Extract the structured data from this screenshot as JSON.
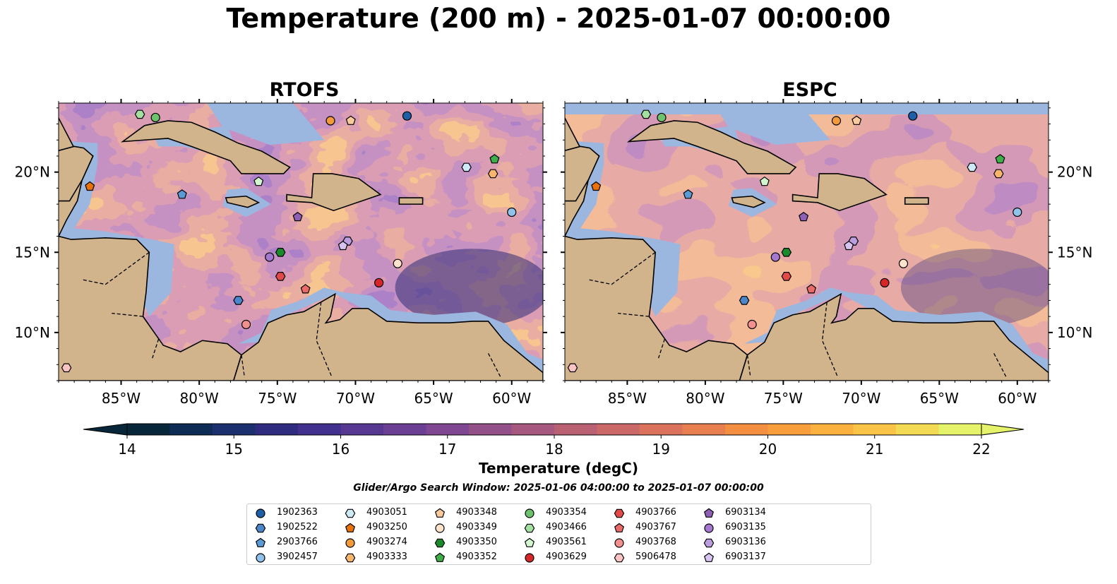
{
  "title": "Temperature (200 m) - 2025-01-07 00:00:00",
  "colors": {
    "land": "#d2b48c",
    "shelf": "#9cb7df",
    "deep_bg": "#062134",
    "warm": "#f7954a",
    "mid": "#a05590",
    "cold": "#2f2c76"
  },
  "panels": [
    {
      "name": "RTOFS",
      "lon_ticks": [
        "85°W",
        "80°W",
        "75°W",
        "70°W",
        "65°W",
        "60°W"
      ],
      "lat_ticks": [
        "20°N",
        "15°N",
        "10°N"
      ],
      "lat_tick_side": "left"
    },
    {
      "name": "ESPC",
      "lon_ticks": [
        "85°W",
        "80°W",
        "75°W",
        "70°W",
        "65°W",
        "60°W"
      ],
      "lat_ticks": [
        "20°N",
        "15°N",
        "10°N"
      ],
      "lat_tick_side": "right"
    }
  ],
  "colorbar": {
    "label": "Temperature (degC)",
    "min": 14,
    "max": 22,
    "step": 0.5,
    "extend": "both",
    "tick_labels": [
      "14",
      "15",
      "16",
      "17",
      "18",
      "19",
      "20",
      "21",
      "22"
    ],
    "colors": [
      "#07263a",
      "#0d2b55",
      "#1c2f6e",
      "#2f2c80",
      "#42318f",
      "#573893",
      "#6b3f94",
      "#7f4791",
      "#935089",
      "#a6587f",
      "#b96073",
      "#cb6968",
      "#db735c",
      "#e87f4e",
      "#f48e41",
      "#f99e3d",
      "#fbb13f",
      "#fac448",
      "#f2da55",
      "#e4f36a"
    ]
  },
  "search_window": "Glider/Argo Search Window: 2025-01-06 04:00:00 to 2025-01-07 00:00:00",
  "floats": [
    {
      "id": "1902363",
      "shape": "circle",
      "color": "#1f5fa8",
      "lon": -66.7,
      "lat": 23.5
    },
    {
      "id": "1902522",
      "shape": "hexagon",
      "color": "#4a86c8",
      "lon": -77.5,
      "lat": 12.0
    },
    {
      "id": "2903766",
      "shape": "pentagon",
      "color": "#5b9bd5",
      "lon": -81.1,
      "lat": 18.6
    },
    {
      "id": "3902457",
      "shape": "circle",
      "color": "#91c2eb",
      "lon": -60.0,
      "lat": 17.5
    },
    {
      "id": "4903051",
      "shape": "hexagon",
      "color": "#cfe9f7",
      "lon": -62.9,
      "lat": 20.3
    },
    {
      "id": "4903250",
      "shape": "pentagon",
      "color": "#e8710a",
      "lon": -87.0,
      "lat": 19.1
    },
    {
      "id": "4903274",
      "shape": "circle",
      "color": "#f39a3a",
      "lon": -71.6,
      "lat": 23.2
    },
    {
      "id": "4903333",
      "shape": "hexagon",
      "color": "#f7b56e",
      "lon": -61.2,
      "lat": 19.9
    },
    {
      "id": "4903348",
      "shape": "pentagon",
      "color": "#f9cb9c",
      "lon": -70.3,
      "lat": 23.2
    },
    {
      "id": "4903349",
      "shape": "circle",
      "color": "#fde3cb",
      "lon": -67.3,
      "lat": 14.3
    },
    {
      "id": "4903350",
      "shape": "hexagon",
      "color": "#1b8a2b",
      "lon": -74.8,
      "lat": 15.0
    },
    {
      "id": "4903352",
      "shape": "pentagon",
      "color": "#3fae49",
      "lon": -61.1,
      "lat": 20.8
    },
    {
      "id": "4903354",
      "shape": "circle",
      "color": "#6cc36c",
      "lon": -82.8,
      "lat": 23.4
    },
    {
      "id": "4903466",
      "shape": "hexagon",
      "color": "#a4e0a0",
      "lon": -83.8,
      "lat": 23.6
    },
    {
      "id": "4903561",
      "shape": "pentagon",
      "color": "#d3f5d0",
      "lon": -76.2,
      "lat": 19.4
    },
    {
      "id": "4903629",
      "shape": "circle",
      "color": "#d62728",
      "lon": -68.5,
      "lat": 13.1
    },
    {
      "id": "4903766",
      "shape": "hexagon",
      "color": "#e24a4a",
      "lon": -74.8,
      "lat": 13.5
    },
    {
      "id": "4903767",
      "shape": "pentagon",
      "color": "#ea6a6a",
      "lon": -73.2,
      "lat": 12.7
    },
    {
      "id": "4903768",
      "shape": "circle",
      "color": "#f29090",
      "lon": -77.0,
      "lat": 10.5
    },
    {
      "id": "5906478",
      "shape": "hexagon",
      "color": "#fbc4c4",
      "lon": -88.5,
      "lat": 7.8
    },
    {
      "id": "6903134",
      "shape": "pentagon",
      "color": "#8e5fb5",
      "lon": -73.7,
      "lat": 17.2
    },
    {
      "id": "6903135",
      "shape": "circle",
      "color": "#a478cf",
      "lon": -75.5,
      "lat": 14.7
    },
    {
      "id": "6903136",
      "shape": "hexagon",
      "color": "#bc9ee0",
      "lon": -70.5,
      "lat": 15.7
    },
    {
      "id": "6903137",
      "shape": "pentagon",
      "color": "#d7c4f0",
      "lon": -70.8,
      "lat": 15.4
    }
  ]
}
